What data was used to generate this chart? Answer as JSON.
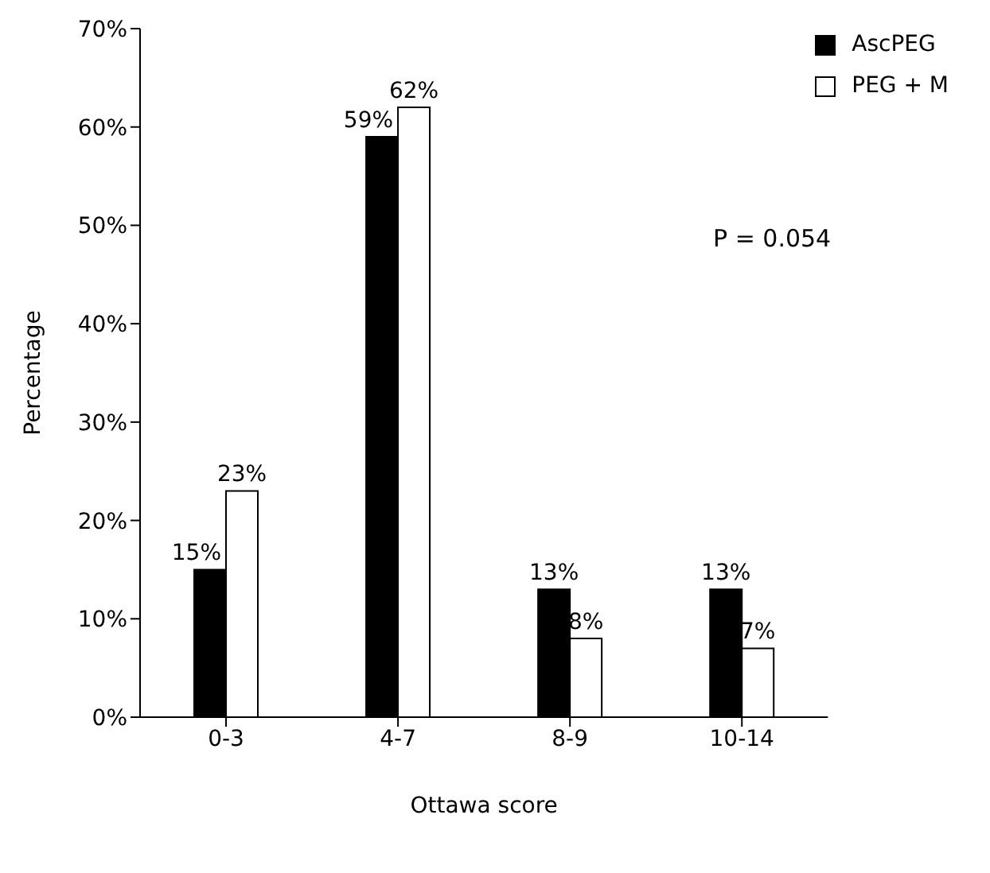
{
  "chart_data": {
    "type": "bar",
    "xlabel": "Ottawa score",
    "ylabel": "Percentage",
    "categories": [
      "0-3",
      "4-7",
      "8-9",
      "10-14"
    ],
    "series": [
      {
        "name": "AscPEG",
        "color": "#000000",
        "values": [
          15,
          59,
          13,
          13
        ],
        "value_labels": [
          "15%",
          "59%",
          "13%",
          "13%"
        ]
      },
      {
        "name": "PEG + M",
        "color": "#ffffff",
        "values": [
          23,
          62,
          8,
          7
        ],
        "value_labels": [
          "23%",
          "62%",
          "8%",
          "7%"
        ]
      }
    ],
    "ylim": [
      0,
      70
    ],
    "yticks": [
      {
        "value": 0,
        "label": "0%"
      },
      {
        "value": 10,
        "label": "10%"
      },
      {
        "value": 20,
        "label": "20%"
      },
      {
        "value": 30,
        "label": "30%"
      },
      {
        "value": 40,
        "label": "40%"
      },
      {
        "value": 50,
        "label": "50%"
      },
      {
        "value": 60,
        "label": "60%"
      },
      {
        "value": 70,
        "label": "70%"
      }
    ],
    "legend": "top right",
    "grid": false,
    "annotations": [
      "P = 0.054"
    ]
  }
}
